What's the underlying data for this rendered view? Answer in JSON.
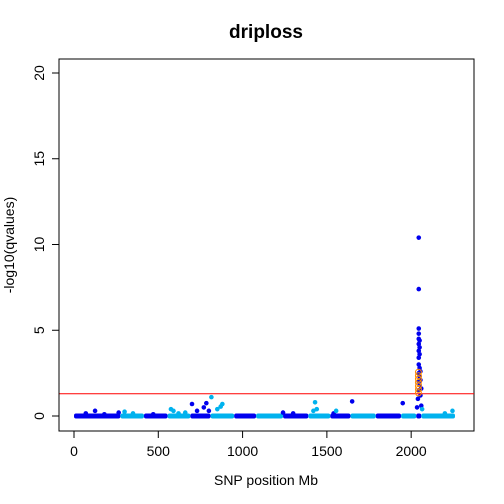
{
  "chart_data": {
    "type": "scatter",
    "title": "driploss",
    "xlabel": "SNP position Mb",
    "ylabel": "-log10(qvalues)",
    "xlim": [
      0,
      2260
    ],
    "ylim": [
      0,
      20
    ],
    "x_ticks": [
      "0",
      "500",
      "1000",
      "1500",
      "2000"
    ],
    "y_ticks": [
      "0",
      "5",
      "10",
      "15",
      "20"
    ],
    "threshold": 1.3,
    "colors": {
      "chrom_a": "#0000ee",
      "chrom_b": "#00b2ee",
      "threshold_line": "#ff0000",
      "highlight": "#ff8c00"
    },
    "chromosome_bands": [
      {
        "start": 0,
        "end": 275,
        "color": "chrom_a"
      },
      {
        "start": 275,
        "end": 415,
        "color": "chrom_b"
      },
      {
        "start": 415,
        "end": 555,
        "color": "chrom_a"
      },
      {
        "start": 555,
        "end": 690,
        "color": "chrom_b"
      },
      {
        "start": 690,
        "end": 810,
        "color": "chrom_a"
      },
      {
        "start": 810,
        "end": 950,
        "color": "chrom_b"
      },
      {
        "start": 950,
        "end": 1080,
        "color": "chrom_a"
      },
      {
        "start": 1080,
        "end": 1240,
        "color": "chrom_b"
      },
      {
        "start": 1240,
        "end": 1390,
        "color": "chrom_a"
      },
      {
        "start": 1390,
        "end": 1520,
        "color": "chrom_b"
      },
      {
        "start": 1520,
        "end": 1640,
        "color": "chrom_a"
      },
      {
        "start": 1640,
        "end": 1790,
        "color": "chrom_b"
      },
      {
        "start": 1790,
        "end": 1940,
        "color": "chrom_a"
      },
      {
        "start": 1940,
        "end": 2030,
        "color": "chrom_b"
      },
      {
        "start": 2030,
        "end": 2060,
        "color": "chrom_a"
      },
      {
        "start": 2060,
        "end": 2260,
        "color": "chrom_b"
      }
    ],
    "points": [
      {
        "x": 70,
        "y": 0.15,
        "c": "chrom_a"
      },
      {
        "x": 125,
        "y": 0.3,
        "c": "chrom_a"
      },
      {
        "x": 180,
        "y": 0.1,
        "c": "chrom_a"
      },
      {
        "x": 265,
        "y": 0.2,
        "c": "chrom_a"
      },
      {
        "x": 300,
        "y": 0.25,
        "c": "chrom_b"
      },
      {
        "x": 350,
        "y": 0.15,
        "c": "chrom_b"
      },
      {
        "x": 470,
        "y": 0.1,
        "c": "chrom_a"
      },
      {
        "x": 575,
        "y": 0.4,
        "c": "chrom_b"
      },
      {
        "x": 590,
        "y": 0.3,
        "c": "chrom_b"
      },
      {
        "x": 620,
        "y": 0.15,
        "c": "chrom_b"
      },
      {
        "x": 660,
        "y": 0.2,
        "c": "chrom_b"
      },
      {
        "x": 700,
        "y": 0.7,
        "c": "chrom_a"
      },
      {
        "x": 730,
        "y": 0.3,
        "c": "chrom_a"
      },
      {
        "x": 770,
        "y": 0.5,
        "c": "chrom_a"
      },
      {
        "x": 785,
        "y": 0.75,
        "c": "chrom_a"
      },
      {
        "x": 800,
        "y": 0.3,
        "c": "chrom_a"
      },
      {
        "x": 815,
        "y": 1.1,
        "c": "chrom_b"
      },
      {
        "x": 850,
        "y": 0.4,
        "c": "chrom_b"
      },
      {
        "x": 870,
        "y": 0.55,
        "c": "chrom_b"
      },
      {
        "x": 880,
        "y": 0.7,
        "c": "chrom_b"
      },
      {
        "x": 1240,
        "y": 0.2,
        "c": "chrom_a"
      },
      {
        "x": 1300,
        "y": 0.15,
        "c": "chrom_a"
      },
      {
        "x": 1420,
        "y": 0.3,
        "c": "chrom_b"
      },
      {
        "x": 1430,
        "y": 0.8,
        "c": "chrom_b"
      },
      {
        "x": 1440,
        "y": 0.4,
        "c": "chrom_b"
      },
      {
        "x": 1540,
        "y": 0.15,
        "c": "chrom_a"
      },
      {
        "x": 1555,
        "y": 0.3,
        "c": "chrom_b"
      },
      {
        "x": 1650,
        "y": 0.85,
        "c": "chrom_a"
      },
      {
        "x": 1950,
        "y": 0.75,
        "c": "chrom_a"
      },
      {
        "x": 2035,
        "y": 0.5,
        "c": "chrom_a"
      },
      {
        "x": 2040,
        "y": 1.0,
        "c": "chrom_a"
      },
      {
        "x": 2045,
        "y": 1.5,
        "c": "chrom_a"
      },
      {
        "x": 2045,
        "y": 2.0,
        "c": "chrom_a"
      },
      {
        "x": 2045,
        "y": 2.5,
        "c": "chrom_a"
      },
      {
        "x": 2045,
        "y": 3.0,
        "c": "chrom_a"
      },
      {
        "x": 2045,
        "y": 3.4,
        "c": "chrom_a"
      },
      {
        "x": 2045,
        "y": 3.8,
        "c": "chrom_a"
      },
      {
        "x": 2045,
        "y": 4.2,
        "c": "chrom_a"
      },
      {
        "x": 2045,
        "y": 4.5,
        "c": "chrom_a"
      },
      {
        "x": 2045,
        "y": 4.8,
        "c": "chrom_a"
      },
      {
        "x": 2045,
        "y": 5.1,
        "c": "chrom_a"
      },
      {
        "x": 2045,
        "y": 7.4,
        "c": "chrom_a"
      },
      {
        "x": 2045,
        "y": 10.4,
        "c": "chrom_a"
      },
      {
        "x": 2050,
        "y": 1.8,
        "c": "chrom_a"
      },
      {
        "x": 2050,
        "y": 2.3,
        "c": "chrom_a"
      },
      {
        "x": 2050,
        "y": 2.8,
        "c": "chrom_a"
      },
      {
        "x": 2050,
        "y": 3.6,
        "c": "chrom_a"
      },
      {
        "x": 2050,
        "y": 4.0,
        "c": "chrom_a"
      },
      {
        "x": 2050,
        "y": 4.4,
        "c": "chrom_a"
      },
      {
        "x": 2055,
        "y": 1.2,
        "c": "chrom_a"
      },
      {
        "x": 2055,
        "y": 2.1,
        "c": "chrom_a"
      },
      {
        "x": 2055,
        "y": 2.6,
        "c": "chrom_a"
      },
      {
        "x": 2060,
        "y": 0.6,
        "c": "chrom_a"
      },
      {
        "x": 2060,
        "y": 1.6,
        "c": "chrom_a"
      },
      {
        "x": 2065,
        "y": 0.4,
        "c": "chrom_b"
      },
      {
        "x": 2200,
        "y": 0.15,
        "c": "chrom_b"
      },
      {
        "x": 2245,
        "y": 0.3,
        "c": "chrom_b"
      }
    ],
    "highlighted_points": [
      {
        "x": 2043,
        "y": 1.35
      },
      {
        "x": 2043,
        "y": 1.55
      },
      {
        "x": 2043,
        "y": 1.75
      },
      {
        "x": 2043,
        "y": 1.95
      },
      {
        "x": 2043,
        "y": 2.15
      },
      {
        "x": 2043,
        "y": 2.35
      },
      {
        "x": 2043,
        "y": 2.55
      }
    ]
  }
}
